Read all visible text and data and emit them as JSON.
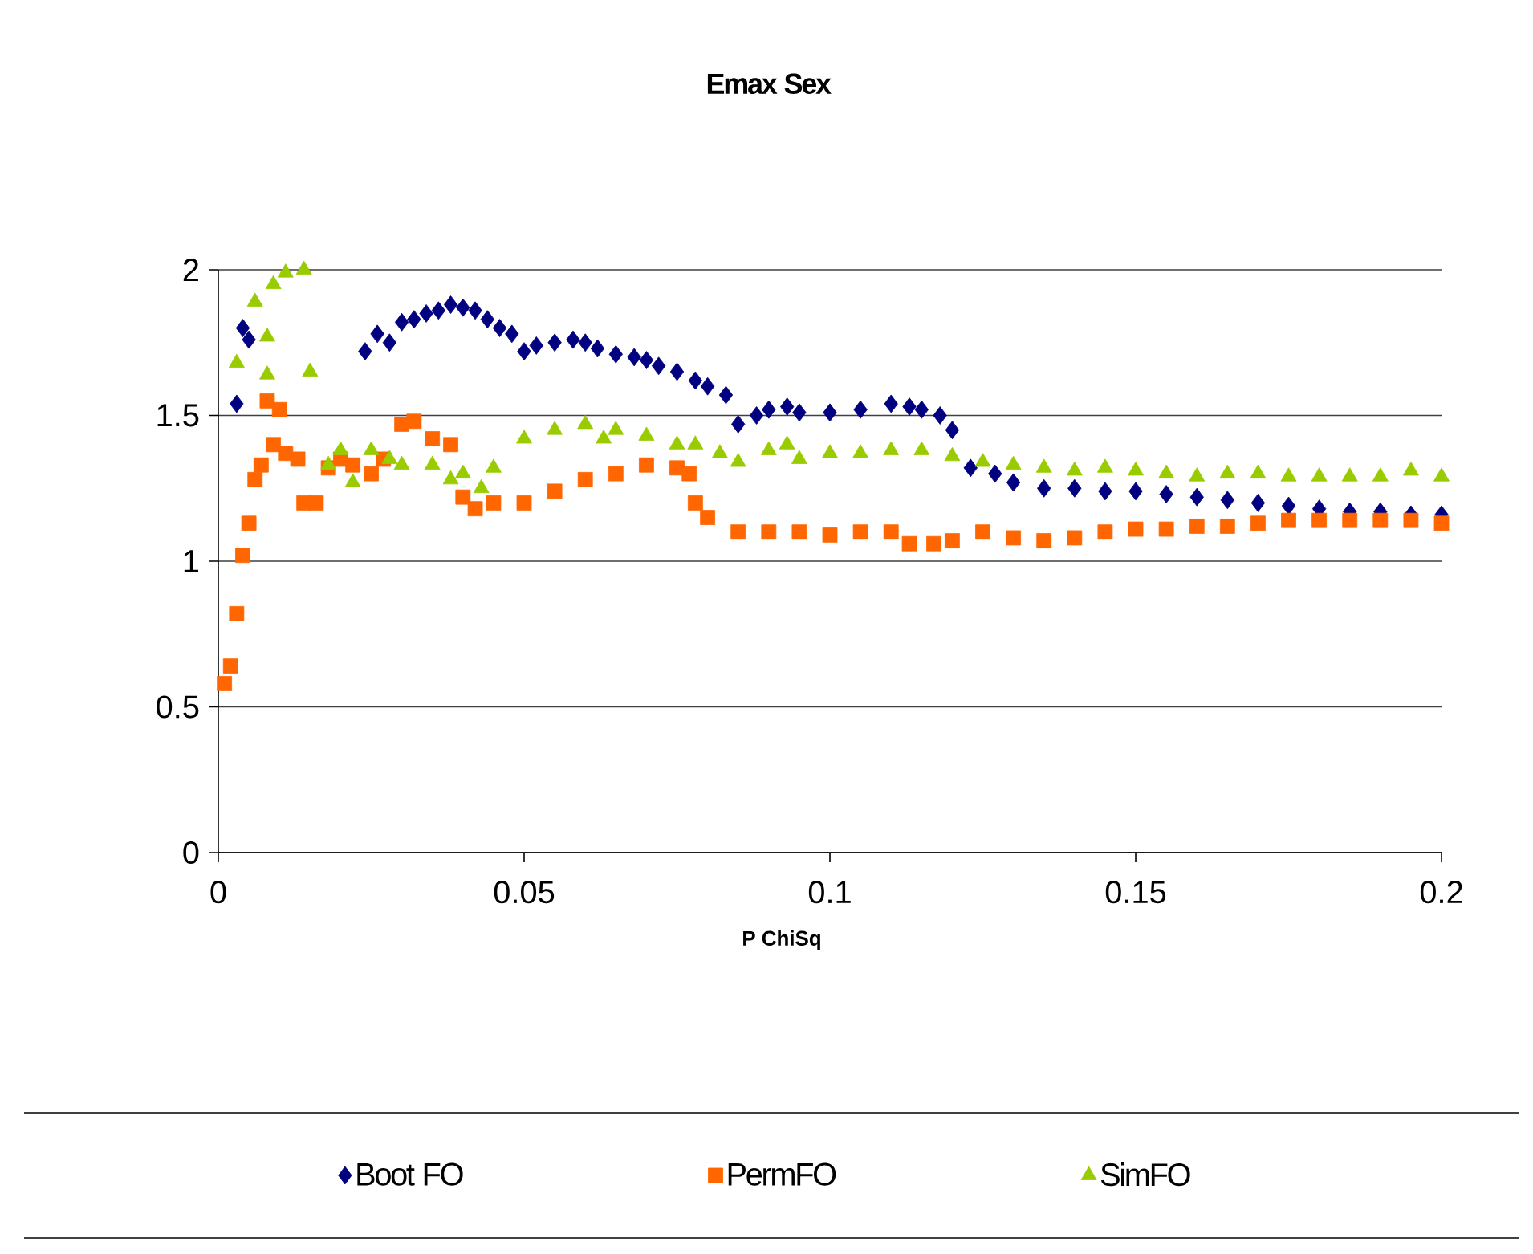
{
  "chart_data": {
    "type": "scatter",
    "title": "Emax Sex",
    "xlabel": "P ChiSq",
    "xlim": [
      0,
      0.2
    ],
    "xticks": [
      0,
      0.05,
      0.1,
      0.15,
      0.2
    ],
    "ylim": [
      0,
      2
    ],
    "yticks": [
      0,
      0.5,
      1,
      1.5,
      2
    ],
    "grid": "y",
    "legend": "bottom",
    "series": [
      {
        "name": "Boot FO",
        "color": "#000080",
        "marker": "diamond",
        "x": [
          0.003,
          0.004,
          0.005,
          0.024,
          0.026,
          0.028,
          0.03,
          0.032,
          0.034,
          0.036,
          0.038,
          0.04,
          0.042,
          0.044,
          0.046,
          0.048,
          0.05,
          0.052,
          0.055,
          0.058,
          0.06,
          0.062,
          0.065,
          0.068,
          0.07,
          0.072,
          0.075,
          0.078,
          0.08,
          0.083,
          0.085,
          0.088,
          0.09,
          0.093,
          0.095,
          0.1,
          0.105,
          0.11,
          0.113,
          0.115,
          0.118,
          0.12,
          0.123,
          0.127,
          0.13,
          0.135,
          0.14,
          0.145,
          0.15,
          0.155,
          0.16,
          0.165,
          0.17,
          0.175,
          0.18,
          0.185,
          0.19,
          0.195,
          0.2
        ],
        "values": [
          1.54,
          1.8,
          1.76,
          1.72,
          1.78,
          1.75,
          1.82,
          1.83,
          1.85,
          1.86,
          1.88,
          1.87,
          1.86,
          1.83,
          1.8,
          1.78,
          1.72,
          1.74,
          1.75,
          1.76,
          1.75,
          1.73,
          1.71,
          1.7,
          1.69,
          1.67,
          1.65,
          1.62,
          1.6,
          1.57,
          1.47,
          1.5,
          1.52,
          1.53,
          1.51,
          1.51,
          1.52,
          1.54,
          1.53,
          1.52,
          1.5,
          1.45,
          1.32,
          1.3,
          1.27,
          1.25,
          1.25,
          1.24,
          1.24,
          1.23,
          1.22,
          1.21,
          1.2,
          1.19,
          1.18,
          1.17,
          1.17,
          1.16,
          1.16
        ]
      },
      {
        "name": "PermFO",
        "color": "#ff6600",
        "marker": "square",
        "x": [
          0.001,
          0.002,
          0.003,
          0.004,
          0.005,
          0.006,
          0.007,
          0.008,
          0.009,
          0.01,
          0.011,
          0.013,
          0.014,
          0.016,
          0.018,
          0.02,
          0.022,
          0.025,
          0.027,
          0.03,
          0.032,
          0.035,
          0.038,
          0.04,
          0.042,
          0.045,
          0.05,
          0.055,
          0.06,
          0.065,
          0.07,
          0.075,
          0.077,
          0.078,
          0.08,
          0.085,
          0.09,
          0.095,
          0.1,
          0.105,
          0.11,
          0.113,
          0.117,
          0.12,
          0.125,
          0.13,
          0.135,
          0.14,
          0.145,
          0.15,
          0.155,
          0.16,
          0.165,
          0.17,
          0.175,
          0.18,
          0.185,
          0.19,
          0.195,
          0.2
        ],
        "values": [
          0.58,
          0.64,
          0.82,
          1.02,
          1.13,
          1.28,
          1.33,
          1.55,
          1.4,
          1.52,
          1.37,
          1.35,
          1.2,
          1.2,
          1.32,
          1.35,
          1.33,
          1.3,
          1.35,
          1.47,
          1.48,
          1.42,
          1.4,
          1.22,
          1.18,
          1.2,
          1.2,
          1.24,
          1.28,
          1.3,
          1.33,
          1.32,
          1.3,
          1.2,
          1.15,
          1.1,
          1.1,
          1.1,
          1.09,
          1.1,
          1.1,
          1.06,
          1.06,
          1.07,
          1.1,
          1.08,
          1.07,
          1.08,
          1.1,
          1.11,
          1.11,
          1.12,
          1.12,
          1.13,
          1.14,
          1.14,
          1.14,
          1.14,
          1.14,
          1.13
        ]
      },
      {
        "name": "SimFO",
        "color": "#99cc00",
        "marker": "triangle",
        "x": [
          0.003,
          0.006,
          0.008,
          0.008,
          0.009,
          0.011,
          0.014,
          0.015,
          0.018,
          0.02,
          0.022,
          0.025,
          0.028,
          0.03,
          0.035,
          0.038,
          0.04,
          0.043,
          0.045,
          0.05,
          0.055,
          0.06,
          0.063,
          0.065,
          0.07,
          0.075,
          0.078,
          0.082,
          0.085,
          0.09,
          0.093,
          0.095,
          0.1,
          0.105,
          0.11,
          0.115,
          0.12,
          0.125,
          0.13,
          0.135,
          0.14,
          0.145,
          0.15,
          0.155,
          0.16,
          0.165,
          0.17,
          0.175,
          0.18,
          0.185,
          0.19,
          0.195,
          0.2
        ],
        "values": [
          1.68,
          1.89,
          1.64,
          1.77,
          1.95,
          1.99,
          2.0,
          1.65,
          1.33,
          1.38,
          1.27,
          1.38,
          1.35,
          1.33,
          1.33,
          1.28,
          1.3,
          1.25,
          1.32,
          1.42,
          1.45,
          1.47,
          1.42,
          1.45,
          1.43,
          1.4,
          1.4,
          1.37,
          1.34,
          1.38,
          1.4,
          1.35,
          1.37,
          1.37,
          1.38,
          1.38,
          1.36,
          1.34,
          1.33,
          1.32,
          1.31,
          1.32,
          1.31,
          1.3,
          1.29,
          1.3,
          1.3,
          1.29,
          1.29,
          1.29,
          1.29,
          1.31,
          1.29
        ]
      }
    ]
  }
}
